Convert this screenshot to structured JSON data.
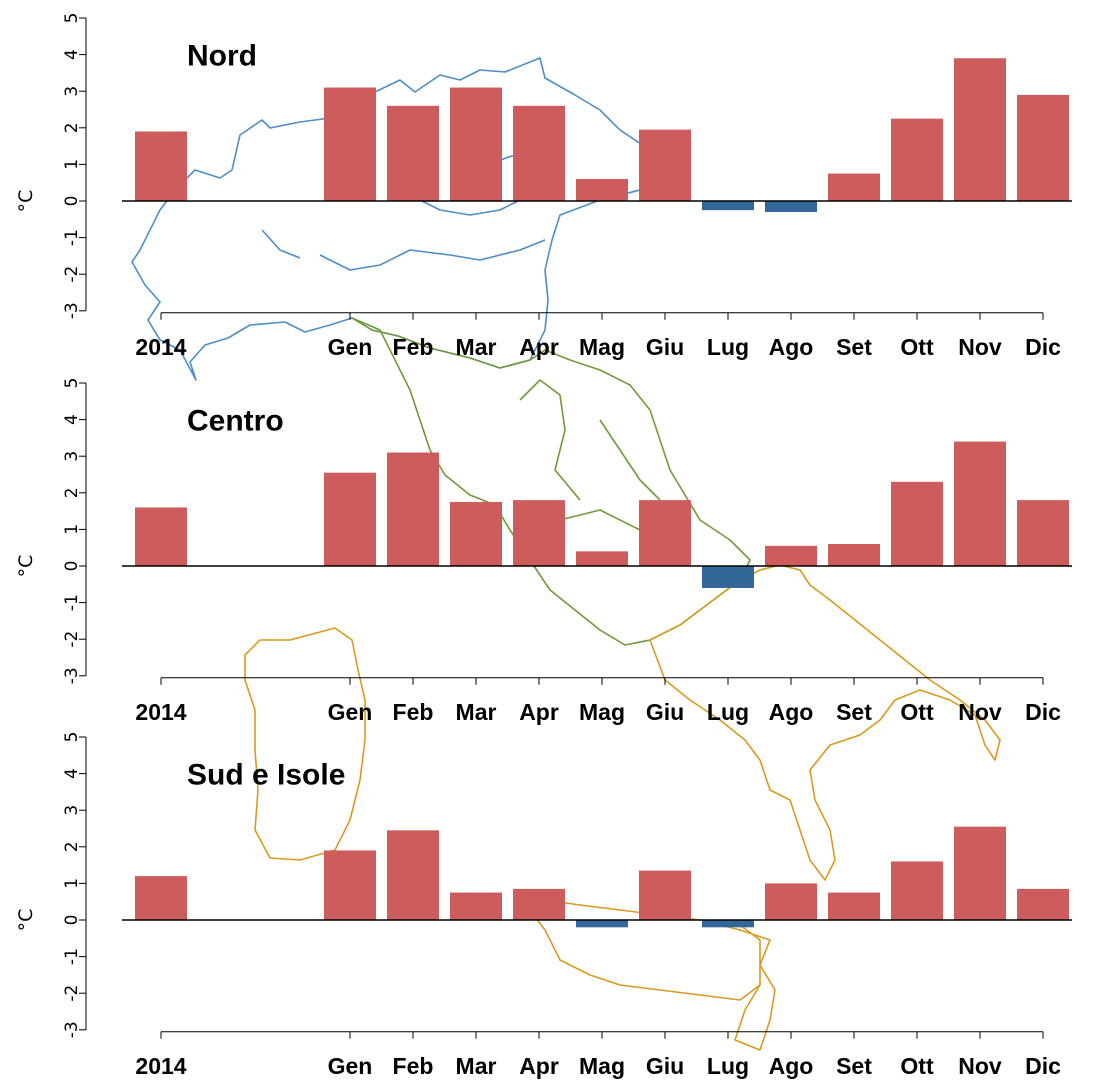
{
  "colors": {
    "positive": "#cd5c5c",
    "negative": "#336699",
    "map_nord": "#4d8ec6",
    "map_centro": "#6f9a3a",
    "map_sud": "#d99a1f"
  },
  "chart_data": [
    {
      "type": "bar",
      "title": "Nord",
      "ylabel": "°C",
      "ylim": [
        -3,
        5
      ],
      "yticks": [
        "-3",
        "-2",
        "-1",
        "0",
        "1",
        "2",
        "3",
        "4",
        "5"
      ],
      "categories": [
        "2014",
        "Gen",
        "Feb",
        "Mar",
        "Apr",
        "Mag",
        "Giu",
        "Lug",
        "Ago",
        "Set",
        "Ott",
        "Nov",
        "Dic"
      ],
      "values": [
        1.9,
        3.1,
        2.6,
        3.1,
        2.6,
        0.6,
        1.95,
        -0.25,
        -0.3,
        0.75,
        2.25,
        3.9,
        2.9
      ]
    },
    {
      "type": "bar",
      "title": "Centro",
      "ylabel": "°C",
      "ylim": [
        -3,
        5
      ],
      "yticks": [
        "-3",
        "-2",
        "-1",
        "0",
        "1",
        "2",
        "3",
        "4",
        "5"
      ],
      "categories": [
        "2014",
        "Gen",
        "Feb",
        "Mar",
        "Apr",
        "Mag",
        "Giu",
        "Lug",
        "Ago",
        "Set",
        "Ott",
        "Nov",
        "Dic"
      ],
      "values": [
        1.6,
        2.55,
        3.1,
        1.75,
        1.8,
        0.4,
        1.8,
        -0.6,
        0.55,
        0.6,
        2.3,
        3.4,
        1.8
      ]
    },
    {
      "type": "bar",
      "title": "Sud e Isole",
      "ylabel": "°C",
      "ylim": [
        -3,
        5
      ],
      "yticks": [
        "-3",
        "-2",
        "-1",
        "0",
        "1",
        "2",
        "3",
        "4",
        "5"
      ],
      "categories": [
        "2014",
        "Gen",
        "Feb",
        "Mar",
        "Apr",
        "Mag",
        "Giu",
        "Lug",
        "Ago",
        "Set",
        "Ott",
        "Nov",
        "Dic"
      ],
      "values": [
        1.2,
        1.9,
        2.45,
        0.75,
        0.85,
        -0.2,
        1.35,
        -0.2,
        1.0,
        0.75,
        1.6,
        2.55,
        0.85
      ]
    }
  ]
}
